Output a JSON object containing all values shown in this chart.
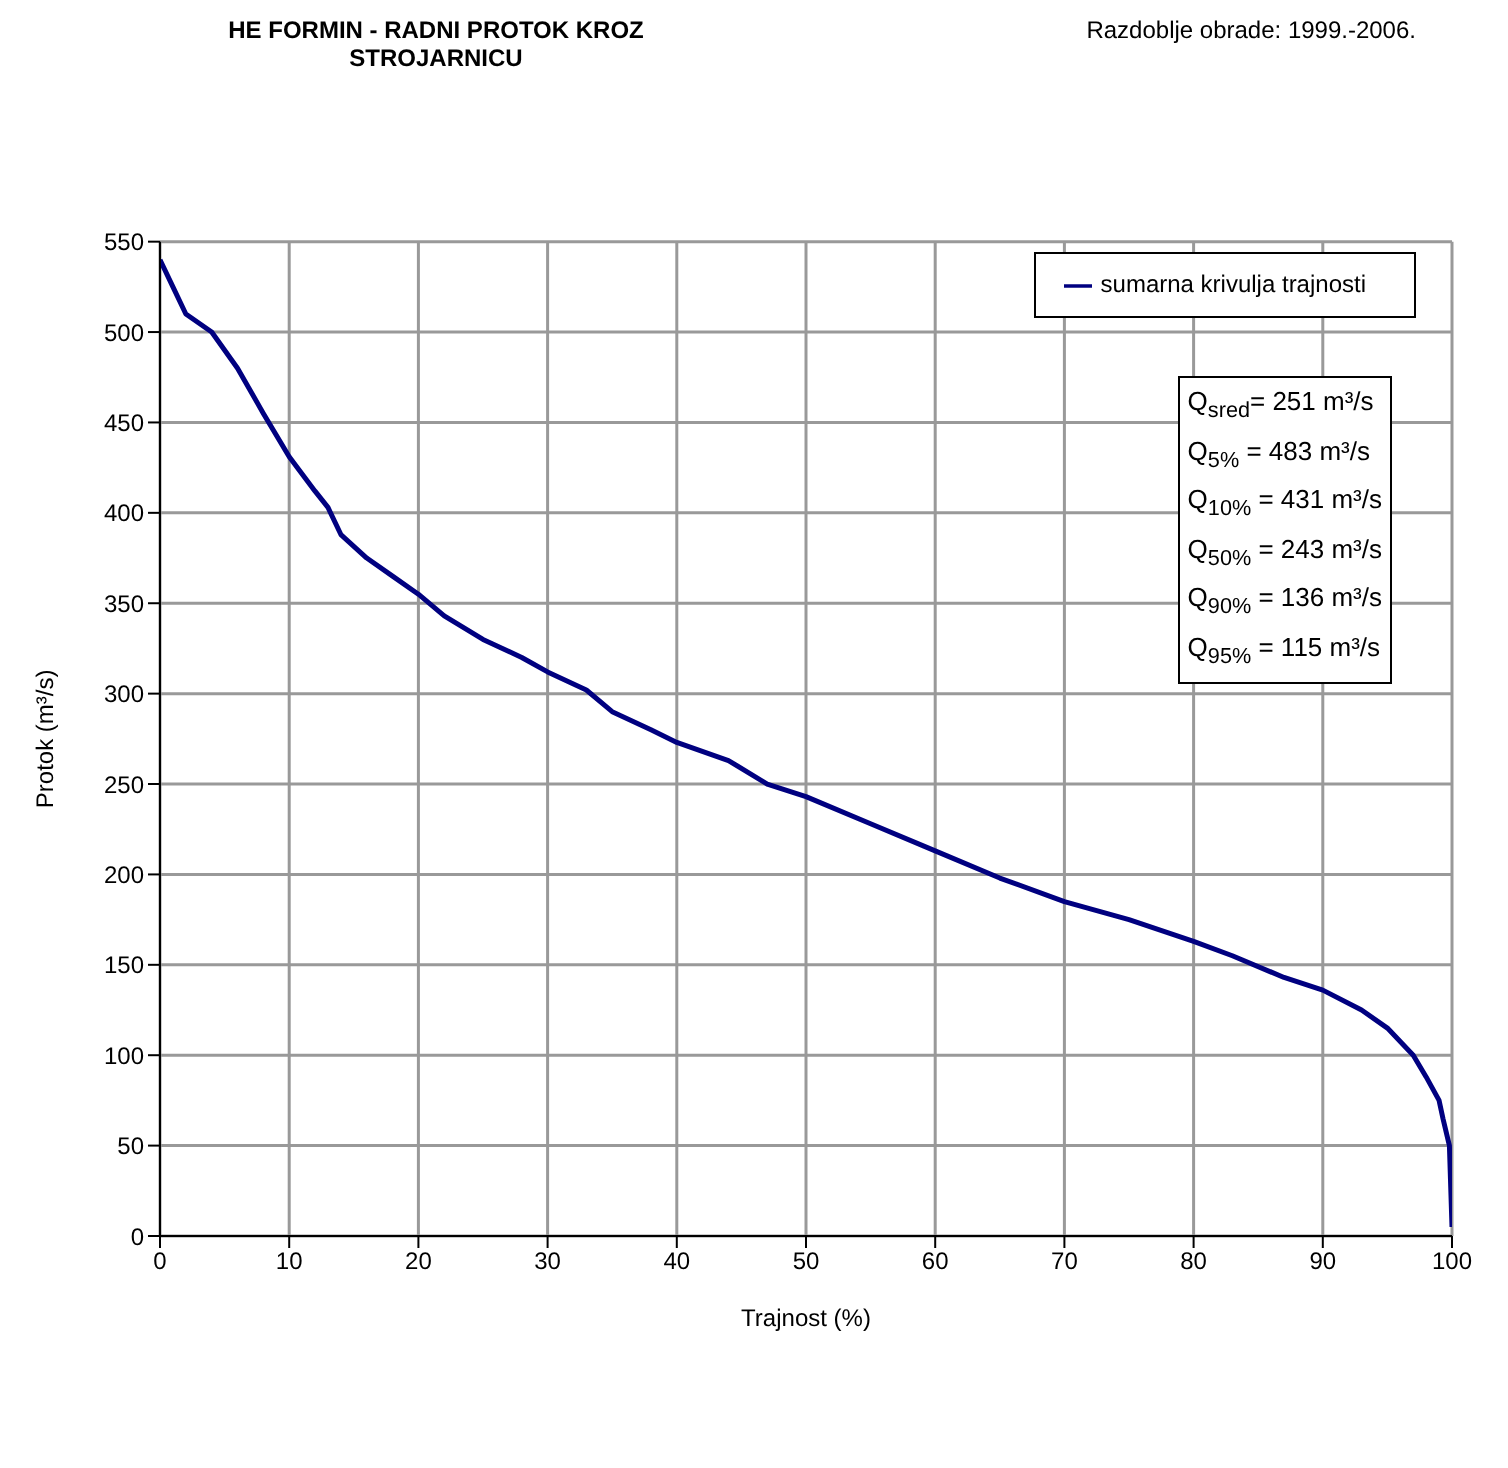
{
  "chart_data": {
    "type": "line",
    "title": "HE FORMIN - RADNI PROTOK KROZ STROJARNICU",
    "subtitle": "Razdoblje obrade: 1999.-2006.",
    "xlabel": "Trajnost (%)",
    "ylabel": "Protok (m³/s)",
    "x": [
      0,
      1,
      2,
      4,
      6,
      8,
      10,
      12,
      13,
      14,
      16,
      18,
      20,
      22,
      25,
      28,
      30,
      33,
      35,
      38,
      40,
      44,
      47,
      50,
      55,
      60,
      65,
      70,
      75,
      80,
      83,
      87,
      90,
      93,
      95,
      97,
      98,
      99,
      99.3,
      99.8,
      100
    ],
    "series": [
      {
        "name": "sumarna krivulja trajnosti",
        "color": "#000080",
        "values": [
          540,
          525,
          510,
          500,
          480,
          455,
          431,
          412,
          403,
          388,
          375,
          365,
          355,
          343,
          330,
          320,
          312,
          302,
          290,
          280,
          273,
          263,
          250,
          243,
          228,
          213,
          198,
          185,
          175,
          163,
          155,
          143,
          136,
          125,
          115,
          100,
          88,
          75,
          65,
          50,
          5
        ]
      }
    ],
    "xlim": [
      0,
      100
    ],
    "xticks": [
      0,
      10,
      20,
      30,
      40,
      50,
      60,
      70,
      80,
      90,
      100
    ],
    "ylim": [
      0,
      550
    ],
    "yticks": [
      0,
      50,
      100,
      150,
      200,
      250,
      300,
      350,
      400,
      450,
      500,
      550
    ],
    "grid": true,
    "legend": "top right",
    "marker": "none",
    "line_style": "solid",
    "annotations": [
      "Q$_{sred}$=  251  m³/s",
      "Q$_{5%}$ =  483  m³/s",
      "Q$_{10%}$ =  431  m³/s",
      "Q$_{50%}$ =  243  m³/s",
      "Q$_{90%}$ = 136   m³/s",
      "Q$_{95%}$ = 115   m³/s"
    ]
  }
}
